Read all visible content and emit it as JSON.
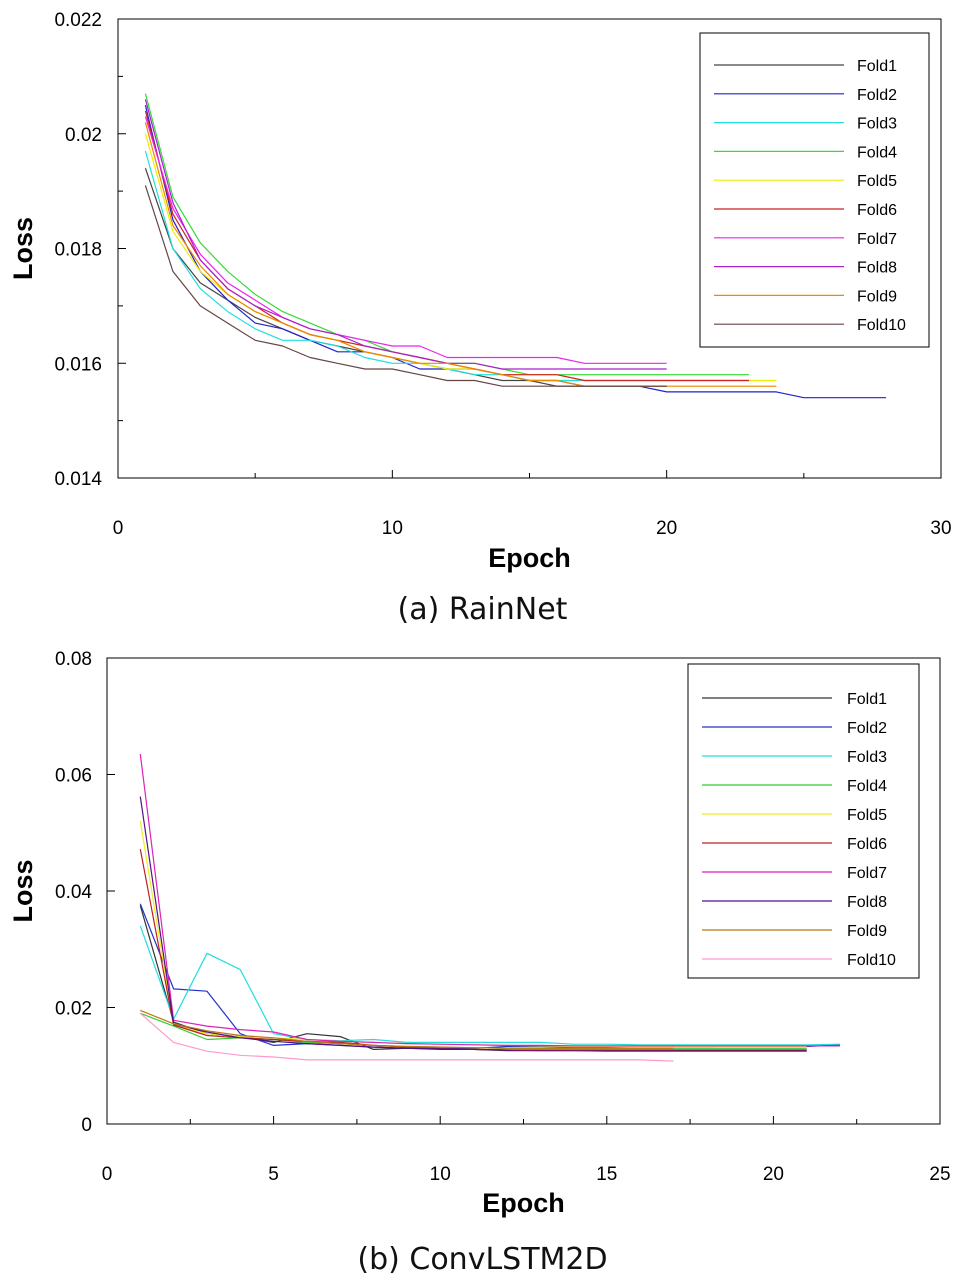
{
  "chart_data": [
    {
      "type": "line",
      "caption": "(a) RainNet",
      "xlabel": "Epoch",
      "ylabel": "Loss",
      "xlim": [
        0,
        30
      ],
      "ylim": [
        0.014,
        0.022
      ],
      "xticks": [
        0,
        10,
        20,
        30
      ],
      "xtick_labels": [
        "0",
        "10",
        "20",
        "30"
      ],
      "yticks": [
        0.014,
        0.016,
        0.018,
        0.02,
        0.022
      ],
      "ytick_labels": [
        "0.014",
        "0.016",
        "0.018",
        "0.02",
        "0.022"
      ],
      "grid": false,
      "legend_position": "top-right",
      "series": [
        {
          "name": "Fold1",
          "color": "#444444",
          "x": [
            1,
            2,
            3,
            4,
            5,
            6,
            7,
            8,
            9,
            10,
            11,
            12,
            13,
            14,
            15,
            16,
            17,
            18,
            19,
            20
          ],
          "y": [
            0.0194,
            0.018,
            0.0174,
            0.0171,
            0.0168,
            0.0166,
            0.0164,
            0.0163,
            0.0162,
            0.0161,
            0.016,
            0.0159,
            0.0158,
            0.0157,
            0.0157,
            0.0156,
            0.0156,
            0.0156,
            0.0156,
            0.0156
          ]
        },
        {
          "name": "Fold2",
          "color": "#2222cc",
          "x": [
            1,
            2,
            3,
            4,
            5,
            6,
            7,
            8,
            9,
            10,
            11,
            12,
            13,
            14,
            15,
            16,
            17,
            18,
            19,
            20,
            21,
            22,
            23,
            24,
            25,
            26,
            27,
            28
          ],
          "y": [
            0.0205,
            0.0185,
            0.0176,
            0.0171,
            0.0167,
            0.0166,
            0.0164,
            0.0162,
            0.0162,
            0.0161,
            0.0159,
            0.0159,
            0.0159,
            0.0158,
            0.0157,
            0.0157,
            0.0156,
            0.0156,
            0.0156,
            0.0155,
            0.0155,
            0.0155,
            0.0155,
            0.0155,
            0.0154,
            0.0154,
            0.0154,
            0.0154
          ]
        },
        {
          "name": "Fold3",
          "color": "#22dddd",
          "x": [
            1,
            2,
            3,
            4,
            5,
            6,
            7,
            8,
            9,
            10,
            11,
            12,
            13,
            14,
            15,
            16,
            17,
            18,
            19,
            20,
            21,
            22,
            23
          ],
          "y": [
            0.0197,
            0.018,
            0.0173,
            0.0169,
            0.0166,
            0.0164,
            0.0164,
            0.0163,
            0.0161,
            0.016,
            0.016,
            0.0159,
            0.0158,
            0.0158,
            0.0157,
            0.0157,
            0.0157,
            0.0157,
            0.0157,
            0.0157,
            0.0157,
            0.0157,
            0.0157
          ]
        },
        {
          "name": "Fold4",
          "color": "#33dd33",
          "x": [
            1,
            2,
            3,
            4,
            5,
            6,
            7,
            8,
            9,
            10,
            11,
            12,
            13,
            14,
            15,
            16,
            17,
            18,
            19,
            20,
            21,
            22,
            23
          ],
          "y": [
            0.0207,
            0.0189,
            0.0181,
            0.0176,
            0.0172,
            0.0169,
            0.0167,
            0.0165,
            0.0164,
            0.0162,
            0.0161,
            0.016,
            0.016,
            0.0159,
            0.0158,
            0.0158,
            0.0158,
            0.0158,
            0.0158,
            0.0158,
            0.0158,
            0.0158,
            0.0158
          ]
        },
        {
          "name": "Fold5",
          "color": "#eeee00",
          "x": [
            1,
            2,
            3,
            4,
            5,
            6,
            7,
            8,
            9,
            10,
            11,
            12,
            13,
            14,
            15,
            16,
            17,
            18,
            19,
            20,
            21,
            22,
            23,
            24
          ],
          "y": [
            0.02,
            0.0183,
            0.0176,
            0.0172,
            0.0169,
            0.0167,
            0.0165,
            0.0164,
            0.0162,
            0.0161,
            0.016,
            0.0159,
            0.0159,
            0.0158,
            0.0158,
            0.0158,
            0.0157,
            0.0157,
            0.0157,
            0.0157,
            0.0157,
            0.0157,
            0.0157,
            0.0157
          ]
        },
        {
          "name": "Fold6",
          "color": "#cc2222",
          "x": [
            1,
            2,
            3,
            4,
            5,
            6,
            7,
            8,
            9,
            10,
            11,
            12,
            13,
            14,
            15,
            16,
            17,
            18,
            19,
            20,
            21,
            22,
            23
          ],
          "y": [
            0.0204,
            0.0186,
            0.0178,
            0.0173,
            0.017,
            0.0167,
            0.0165,
            0.0164,
            0.0163,
            0.0162,
            0.0161,
            0.016,
            0.0159,
            0.0158,
            0.0158,
            0.0158,
            0.0157,
            0.0157,
            0.0157,
            0.0157,
            0.0157,
            0.0157,
            0.0157
          ]
        },
        {
          "name": "Fold7",
          "color": "#ee22ee",
          "x": [
            1,
            2,
            3,
            4,
            5,
            6,
            7,
            8,
            9,
            10,
            11,
            12,
            13,
            14,
            15,
            16,
            17,
            18,
            19,
            20
          ],
          "y": [
            0.0203,
            0.0187,
            0.0179,
            0.0174,
            0.0171,
            0.0168,
            0.0166,
            0.0165,
            0.0164,
            0.0163,
            0.0163,
            0.0161,
            0.0161,
            0.0161,
            0.0161,
            0.0161,
            0.016,
            0.016,
            0.016,
            0.016
          ]
        },
        {
          "name": "Fold8",
          "color": "#aa22cc",
          "x": [
            1,
            2,
            3,
            4,
            5,
            6,
            7,
            8,
            9,
            10,
            11,
            12,
            13,
            14,
            15,
            16,
            17,
            18,
            19,
            20
          ],
          "y": [
            0.0206,
            0.0188,
            0.0178,
            0.0173,
            0.017,
            0.0168,
            0.0166,
            0.0165,
            0.0163,
            0.0162,
            0.0161,
            0.016,
            0.016,
            0.0159,
            0.0159,
            0.0159,
            0.0159,
            0.0159,
            0.0159,
            0.0159
          ]
        },
        {
          "name": "Fold9",
          "color": "#ee8800",
          "x": [
            1,
            2,
            3,
            4,
            5,
            6,
            7,
            8,
            9,
            10,
            11,
            12,
            13,
            14,
            15,
            16,
            17,
            18,
            19,
            20,
            21,
            22,
            23,
            24
          ],
          "y": [
            0.0202,
            0.0184,
            0.0177,
            0.0172,
            0.0169,
            0.0167,
            0.0165,
            0.0164,
            0.0162,
            0.0161,
            0.016,
            0.016,
            0.0159,
            0.0158,
            0.0157,
            0.0157,
            0.0156,
            0.0156,
            0.0156,
            0.0156,
            0.0156,
            0.0156,
            0.0156,
            0.0156
          ]
        },
        {
          "name": "Fold10",
          "color": "#664444",
          "x": [
            1,
            2,
            3,
            4,
            5,
            6,
            7,
            8,
            9,
            10,
            11,
            12,
            13,
            14,
            15,
            16,
            17,
            18,
            19,
            20
          ],
          "y": [
            0.0191,
            0.0176,
            0.017,
            0.0167,
            0.0164,
            0.0163,
            0.0161,
            0.016,
            0.0159,
            0.0159,
            0.0158,
            0.0157,
            0.0157,
            0.0156,
            0.0156,
            0.0156,
            0.0156,
            0.0156,
            0.0156,
            0.0156
          ]
        }
      ]
    },
    {
      "type": "line",
      "caption": "(b) ConvLSTM2D",
      "xlabel": "Epoch",
      "ylabel": "Loss",
      "xlim": [
        0,
        25
      ],
      "ylim": [
        0,
        0.08
      ],
      "xticks": [
        0,
        5,
        10,
        15,
        20,
        25
      ],
      "xtick_labels": [
        "0",
        "5",
        "10",
        "15",
        "20",
        "25"
      ],
      "yticks": [
        0,
        0.02,
        0.04,
        0.06,
        0.08
      ],
      "ytick_labels": [
        "0",
        "0.02",
        "0.04",
        "0.06",
        "0.08"
      ],
      "grid": false,
      "legend_position": "top-right",
      "series": [
        {
          "name": "Fold1",
          "color": "#333333",
          "x": [
            1,
            2,
            3,
            4,
            5,
            6,
            7,
            8,
            9,
            10,
            11,
            12,
            13,
            14,
            15,
            16,
            17,
            18,
            19,
            20,
            21
          ],
          "y": [
            0.0375,
            0.0175,
            0.0155,
            0.015,
            0.014,
            0.0155,
            0.015,
            0.0128,
            0.013,
            0.0128,
            0.0128,
            0.0126,
            0.0126,
            0.0126,
            0.0125,
            0.0125,
            0.0125,
            0.0125,
            0.0125,
            0.0125,
            0.0125
          ]
        },
        {
          "name": "Fold2",
          "color": "#2233cc",
          "x": [
            1,
            2,
            3,
            4,
            5,
            6,
            7,
            8,
            9,
            10,
            11,
            12,
            13,
            14,
            15,
            16,
            17,
            18,
            19,
            20,
            21,
            22
          ],
          "y": [
            0.0378,
            0.0232,
            0.0228,
            0.0155,
            0.0135,
            0.0138,
            0.0135,
            0.0132,
            0.013,
            0.013,
            0.013,
            0.0133,
            0.0133,
            0.0132,
            0.0132,
            0.0132,
            0.0132,
            0.0132,
            0.0133,
            0.0133,
            0.0133,
            0.0136
          ]
        },
        {
          "name": "Fold3",
          "color": "#22dddd",
          "x": [
            1,
            2,
            3,
            4,
            5,
            6,
            7,
            8,
            9,
            10,
            11,
            12,
            13,
            14,
            15,
            16,
            17,
            18,
            19,
            20,
            21,
            22
          ],
          "y": [
            0.034,
            0.018,
            0.0293,
            0.0265,
            0.0155,
            0.0145,
            0.0143,
            0.0145,
            0.014,
            0.014,
            0.014,
            0.014,
            0.014,
            0.0137,
            0.0137,
            0.0136,
            0.0136,
            0.0136,
            0.0136,
            0.0136,
            0.0136,
            0.0137
          ]
        },
        {
          "name": "Fold4",
          "color": "#33cc33",
          "x": [
            1,
            2,
            3,
            4,
            5,
            6,
            7,
            8,
            9,
            10,
            11,
            12,
            13,
            14,
            15,
            16,
            17,
            18,
            19,
            20,
            21
          ],
          "y": [
            0.019,
            0.0168,
            0.0145,
            0.0148,
            0.0145,
            0.014,
            0.0138,
            0.0135,
            0.0133,
            0.0132,
            0.0131,
            0.013,
            0.013,
            0.013,
            0.013,
            0.013,
            0.013,
            0.013,
            0.013,
            0.013,
            0.013
          ]
        },
        {
          "name": "Fold5",
          "color": "#eeee22",
          "x": [
            1,
            2,
            3,
            4,
            5,
            6,
            7,
            8,
            9,
            10,
            11,
            12,
            13,
            14,
            15,
            16,
            17,
            18,
            19,
            20,
            21
          ],
          "y": [
            0.052,
            0.017,
            0.0155,
            0.015,
            0.0148,
            0.0145,
            0.0142,
            0.014,
            0.0138,
            0.0137,
            0.0136,
            0.0135,
            0.0134,
            0.0133,
            0.0133,
            0.0132,
            0.0132,
            0.0132,
            0.0132,
            0.0132,
            0.0132
          ]
        },
        {
          "name": "Fold6",
          "color": "#bb2222",
          "x": [
            1,
            2,
            3,
            4,
            5,
            6,
            7,
            8,
            9,
            10,
            11,
            12,
            13,
            14,
            15,
            16,
            17,
            18,
            19,
            20,
            21
          ],
          "y": [
            0.0472,
            0.017,
            0.0152,
            0.0148,
            0.0145,
            0.0142,
            0.014,
            0.0135,
            0.0132,
            0.013,
            0.0128,
            0.0127,
            0.0126,
            0.0126,
            0.0126,
            0.0126,
            0.0126,
            0.0126,
            0.0126,
            0.0126,
            0.0126
          ]
        },
        {
          "name": "Fold7",
          "color": "#dd22bb",
          "x": [
            1,
            2,
            3,
            4,
            5,
            6,
            7,
            8,
            9,
            10,
            11,
            12,
            13,
            14,
            15,
            16,
            17,
            18,
            19,
            20,
            21,
            22
          ],
          "y": [
            0.0635,
            0.0178,
            0.0168,
            0.0162,
            0.0158,
            0.0145,
            0.0142,
            0.014,
            0.0138,
            0.0137,
            0.0136,
            0.0135,
            0.0135,
            0.0134,
            0.0134,
            0.0134,
            0.0134,
            0.0134,
            0.0134,
            0.0134,
            0.0134,
            0.0134
          ]
        },
        {
          "name": "Fold8",
          "color": "#551188",
          "x": [
            1,
            2,
            3,
            4,
            5,
            6,
            7,
            8,
            9,
            10,
            11,
            12,
            13,
            14,
            15,
            16,
            17,
            18,
            19,
            20,
            21
          ],
          "y": [
            0.0562,
            0.0172,
            0.0158,
            0.0148,
            0.0142,
            0.0138,
            0.0135,
            0.0132,
            0.013,
            0.0129,
            0.0128,
            0.0127,
            0.0127,
            0.0127,
            0.0127,
            0.0127,
            0.0127,
            0.0127,
            0.0127,
            0.0127,
            0.0127
          ]
        },
        {
          "name": "Fold9",
          "color": "#bb7711",
          "x": [
            1,
            2,
            3,
            4,
            5,
            6,
            7,
            8,
            9,
            10,
            11,
            12,
            13,
            14,
            15,
            16,
            17
          ],
          "y": [
            0.0195,
            0.0172,
            0.016,
            0.0152,
            0.0148,
            0.0142,
            0.0138,
            0.0135,
            0.0133,
            0.0132,
            0.0131,
            0.013,
            0.013,
            0.013,
            0.013,
            0.013,
            0.013
          ]
        },
        {
          "name": "Fold10",
          "color": "#ff99cc",
          "x": [
            1,
            2,
            3,
            4,
            5,
            6,
            7,
            8,
            9,
            10,
            11,
            12,
            13,
            14,
            15,
            16,
            17
          ],
          "y": [
            0.019,
            0.014,
            0.0125,
            0.0118,
            0.0115,
            0.011,
            0.011,
            0.011,
            0.011,
            0.011,
            0.011,
            0.011,
            0.011,
            0.011,
            0.011,
            0.011,
            0.0108
          ]
        }
      ]
    }
  ]
}
